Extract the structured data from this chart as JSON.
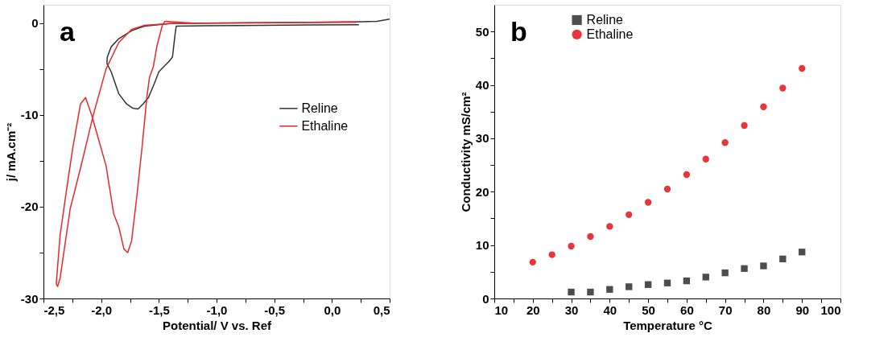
{
  "chart_data": [
    {
      "type": "line",
      "xlabel": "Potential/ V vs. Ref",
      "ylabel": "j/ mA.cm⁻²",
      "annotations": [
        "a"
      ],
      "legend": "right",
      "marker": "none",
      "line_style": "solid",
      "grid": false,
      "xlim": [
        -2.5,
        0.5
      ],
      "ylim": [
        -30,
        2
      ],
      "xticks": [
        {
          "value": -2.5,
          "label": "-2,5"
        },
        {
          "value": -2.25,
          "label": null
        },
        {
          "value": -2.0,
          "label": "-2,0"
        },
        {
          "value": -1.75,
          "label": null
        },
        {
          "value": -1.5,
          "label": "-1,5"
        },
        {
          "value": -1.25,
          "label": null
        },
        {
          "value": -1.0,
          "label": "-1,0"
        },
        {
          "value": -0.75,
          "label": null
        },
        {
          "value": -0.5,
          "label": "-0,5"
        },
        {
          "value": -0.25,
          "label": null
        },
        {
          "value": 0.0,
          "label": "0,0"
        },
        {
          "value": 0.25,
          "label": null
        },
        {
          "value": 0.5,
          "label": "0,5"
        }
      ],
      "yticks": [
        -30,
        {
          "value": -25,
          "label": null
        },
        -20,
        {
          "value": -15,
          "label": null
        },
        -10,
        {
          "value": -5,
          "label": null
        },
        0
      ],
      "series": [
        {
          "name": "Reline",
          "color": "#333333",
          "x": [
            0.234,
            -0.2,
            -0.8,
            -1.349,
            -1.36,
            -1.382,
            -1.415,
            -1.47,
            -1.5,
            -1.537,
            -1.59,
            -1.637,
            -1.68,
            -1.725,
            -1.78,
            -1.847,
            -1.913,
            -1.95,
            -1.947,
            -1.913,
            -1.847,
            -1.736,
            -1.625,
            -1.404,
            -0.85,
            -0.187,
            0.256,
            0.39,
            0.5
          ],
          "values": [
            -0.17,
            -0.2,
            -0.25,
            -0.32,
            -1.25,
            -3.7,
            -4.2,
            -4.9,
            -5.3,
            -6.5,
            -8.1,
            -8.8,
            -9.36,
            -9.27,
            -8.8,
            -7.7,
            -5.3,
            -4.4,
            -3.7,
            -2.57,
            -1.69,
            -0.82,
            -0.32,
            -0.03,
            0.03,
            0.09,
            0.15,
            0.2,
            0.44
          ]
        },
        {
          "name": "Ethaline",
          "color": "#e8282b",
          "x": [
            0.212,
            0.168,
            -0.5,
            -1.2,
            -1.448,
            -1.47,
            -1.515,
            -1.548,
            -1.581,
            -1.603,
            -1.648,
            -1.692,
            -1.736,
            -1.77,
            -1.803,
            -1.847,
            -1.891,
            -1.958,
            -2.024,
            -2.08,
            -2.135,
            -2.179,
            -2.245,
            -2.29,
            -2.356,
            -2.389,
            -2.378,
            -2.356,
            -2.268,
            -2.179,
            -2.068,
            -1.958,
            -1.847,
            -1.736,
            -1.625,
            -1.404,
            -0.85,
            -0.187,
            0.168
          ],
          "values": [
            0.09,
            0.12,
            0.05,
            0.0,
            0.2,
            -0.23,
            -2.4,
            -4.75,
            -5.9,
            -7.96,
            -13.8,
            -19.0,
            -23.7,
            -25.0,
            -24.6,
            -22.2,
            -20.8,
            -15.5,
            -12.6,
            -10.1,
            -8.1,
            -8.8,
            -13.5,
            -17.3,
            -23.1,
            -28.4,
            -28.7,
            -27.8,
            -20.2,
            -15.8,
            -10.0,
            -5.0,
            -2.1,
            -0.67,
            -0.23,
            -0.03,
            0.03,
            0.09,
            0.12
          ]
        }
      ]
    },
    {
      "type": "scatter",
      "xlabel": "Temperature °C",
      "ylabel": "Conductivity mS/cm²",
      "annotations": [
        "b"
      ],
      "legend": "top left",
      "grid": false,
      "xlim": [
        10,
        100
      ],
      "ylim": [
        0,
        55
      ],
      "xticks": [
        10,
        {
          "value": 15,
          "label": null
        },
        20,
        {
          "value": 25,
          "label": null
        },
        30,
        {
          "value": 35,
          "label": null
        },
        40,
        {
          "value": 45,
          "label": null
        },
        50,
        {
          "value": 55,
          "label": null
        },
        60,
        {
          "value": 65,
          "label": null
        },
        70,
        {
          "value": 75,
          "label": null
        },
        80,
        {
          "value": 85,
          "label": null
        },
        90,
        {
          "value": 95,
          "label": null
        },
        100
      ],
      "yticks": [
        0,
        {
          "value": 5,
          "label": null
        },
        10,
        {
          "value": 15,
          "label": null
        },
        20,
        {
          "value": 25,
          "label": null
        },
        30,
        {
          "value": 35,
          "label": null
        },
        40,
        {
          "value": 45,
          "label": null
        },
        50
      ],
      "series": [
        {
          "name": "Reline",
          "color": "#4d4d4d",
          "marker": "square",
          "x": [
            30,
            35,
            40,
            45,
            50,
            55,
            60,
            65,
            70,
            75,
            80,
            85,
            90
          ],
          "values": [
            1.2,
            1.2,
            1.7,
            2.2,
            2.6,
            2.9,
            3.3,
            4.0,
            4.8,
            5.6,
            6.1,
            7.4,
            8.7
          ]
        },
        {
          "name": "Ethaline",
          "color": "#e8353a",
          "marker": "circle",
          "x": [
            20,
            25,
            30,
            35,
            40,
            45,
            50,
            55,
            60,
            65,
            70,
            75,
            80,
            85,
            90
          ],
          "values": [
            6.8,
            8.2,
            9.8,
            11.6,
            13.5,
            15.7,
            18.0,
            20.5,
            23.2,
            26.1,
            29.2,
            32.4,
            35.9,
            39.4,
            43.1
          ]
        }
      ]
    }
  ]
}
